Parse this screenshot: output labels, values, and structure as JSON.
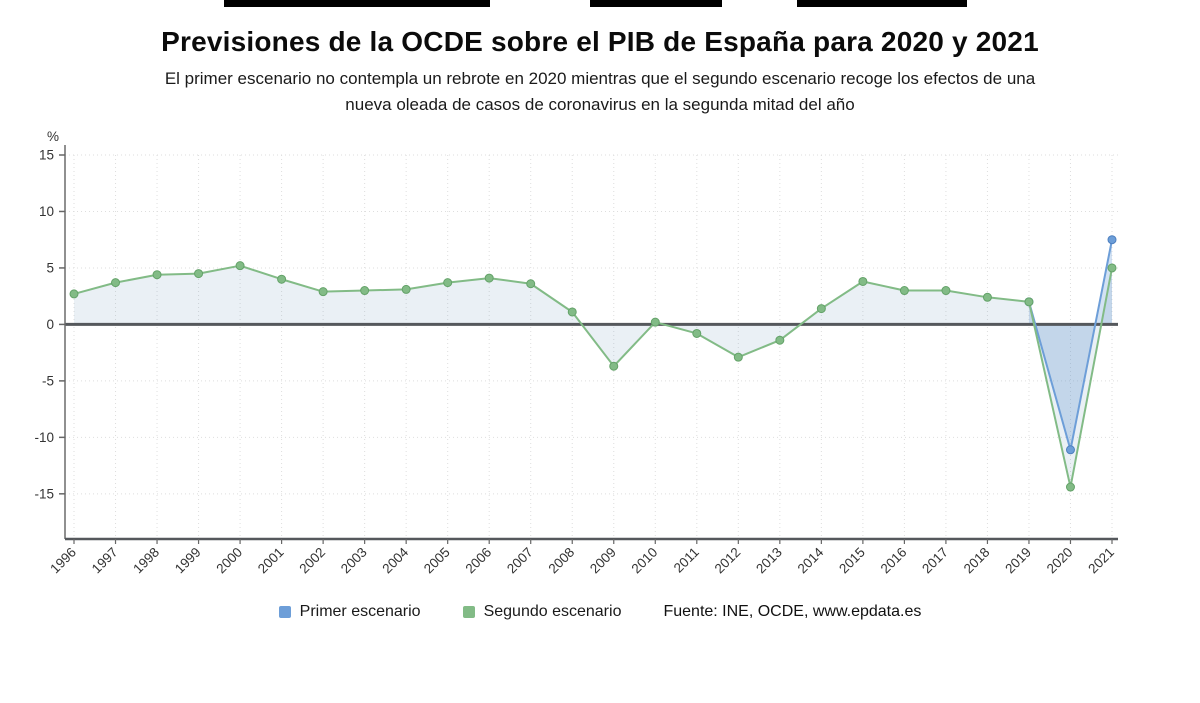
{
  "header": {
    "title": "Previsiones de la OCDE sobre el PIB de España para 2020 y 2021",
    "subtitle": "El primer escenario no contempla un rebrote en 2020 mientras que el segundo escenario recoge los efectos de una\nnueva oleada de casos de coronavirus en la segunda mitad del año"
  },
  "legend": {
    "items": [
      {
        "label": "Primer escenario",
        "color": "#6d9ed8"
      },
      {
        "label": "Segundo escenario",
        "color": "#82bb86"
      }
    ],
    "source": "Fuente: INE, OCDE, www.epdata.es"
  },
  "chart_data": {
    "type": "line",
    "title": "Previsiones de la OCDE sobre el PIB de España para 2020 y 2021",
    "xlabel": "",
    "ylabel": "%",
    "ylim": [
      -19,
      15
    ],
    "yticks": [
      15,
      10,
      5,
      0,
      -5,
      -10,
      -15
    ],
    "grid": "dotted",
    "legend_position": "bottom",
    "x": [
      1996,
      1997,
      1998,
      1999,
      2000,
      2001,
      2002,
      2003,
      2004,
      2005,
      2006,
      2007,
      2008,
      2009,
      2010,
      2011,
      2012,
      2013,
      2014,
      2015,
      2016,
      2017,
      2018,
      2019,
      2020,
      2021
    ],
    "series": [
      {
        "name": "Primer escenario",
        "color": "#6d9ed8",
        "marker_stroke": "#4d7fbf",
        "fill": "rgba(109,158,216,0.30)",
        "values": [
          null,
          null,
          null,
          null,
          null,
          null,
          null,
          null,
          null,
          null,
          null,
          null,
          null,
          null,
          null,
          null,
          null,
          null,
          null,
          null,
          null,
          null,
          null,
          2.0,
          -11.1,
          7.5
        ]
      },
      {
        "name": "Segundo escenario",
        "color": "#82bb86",
        "marker_stroke": "#63a268",
        "fill": "rgba(96,140,180,0.13)",
        "values": [
          2.7,
          3.7,
          4.4,
          4.5,
          5.2,
          4.0,
          2.9,
          3.0,
          3.1,
          3.7,
          4.1,
          3.6,
          1.1,
          -3.7,
          0.2,
          -0.8,
          -2.9,
          -1.4,
          1.4,
          3.8,
          3.0,
          3.0,
          2.4,
          2.0,
          -14.4,
          5.0
        ]
      }
    ]
  }
}
